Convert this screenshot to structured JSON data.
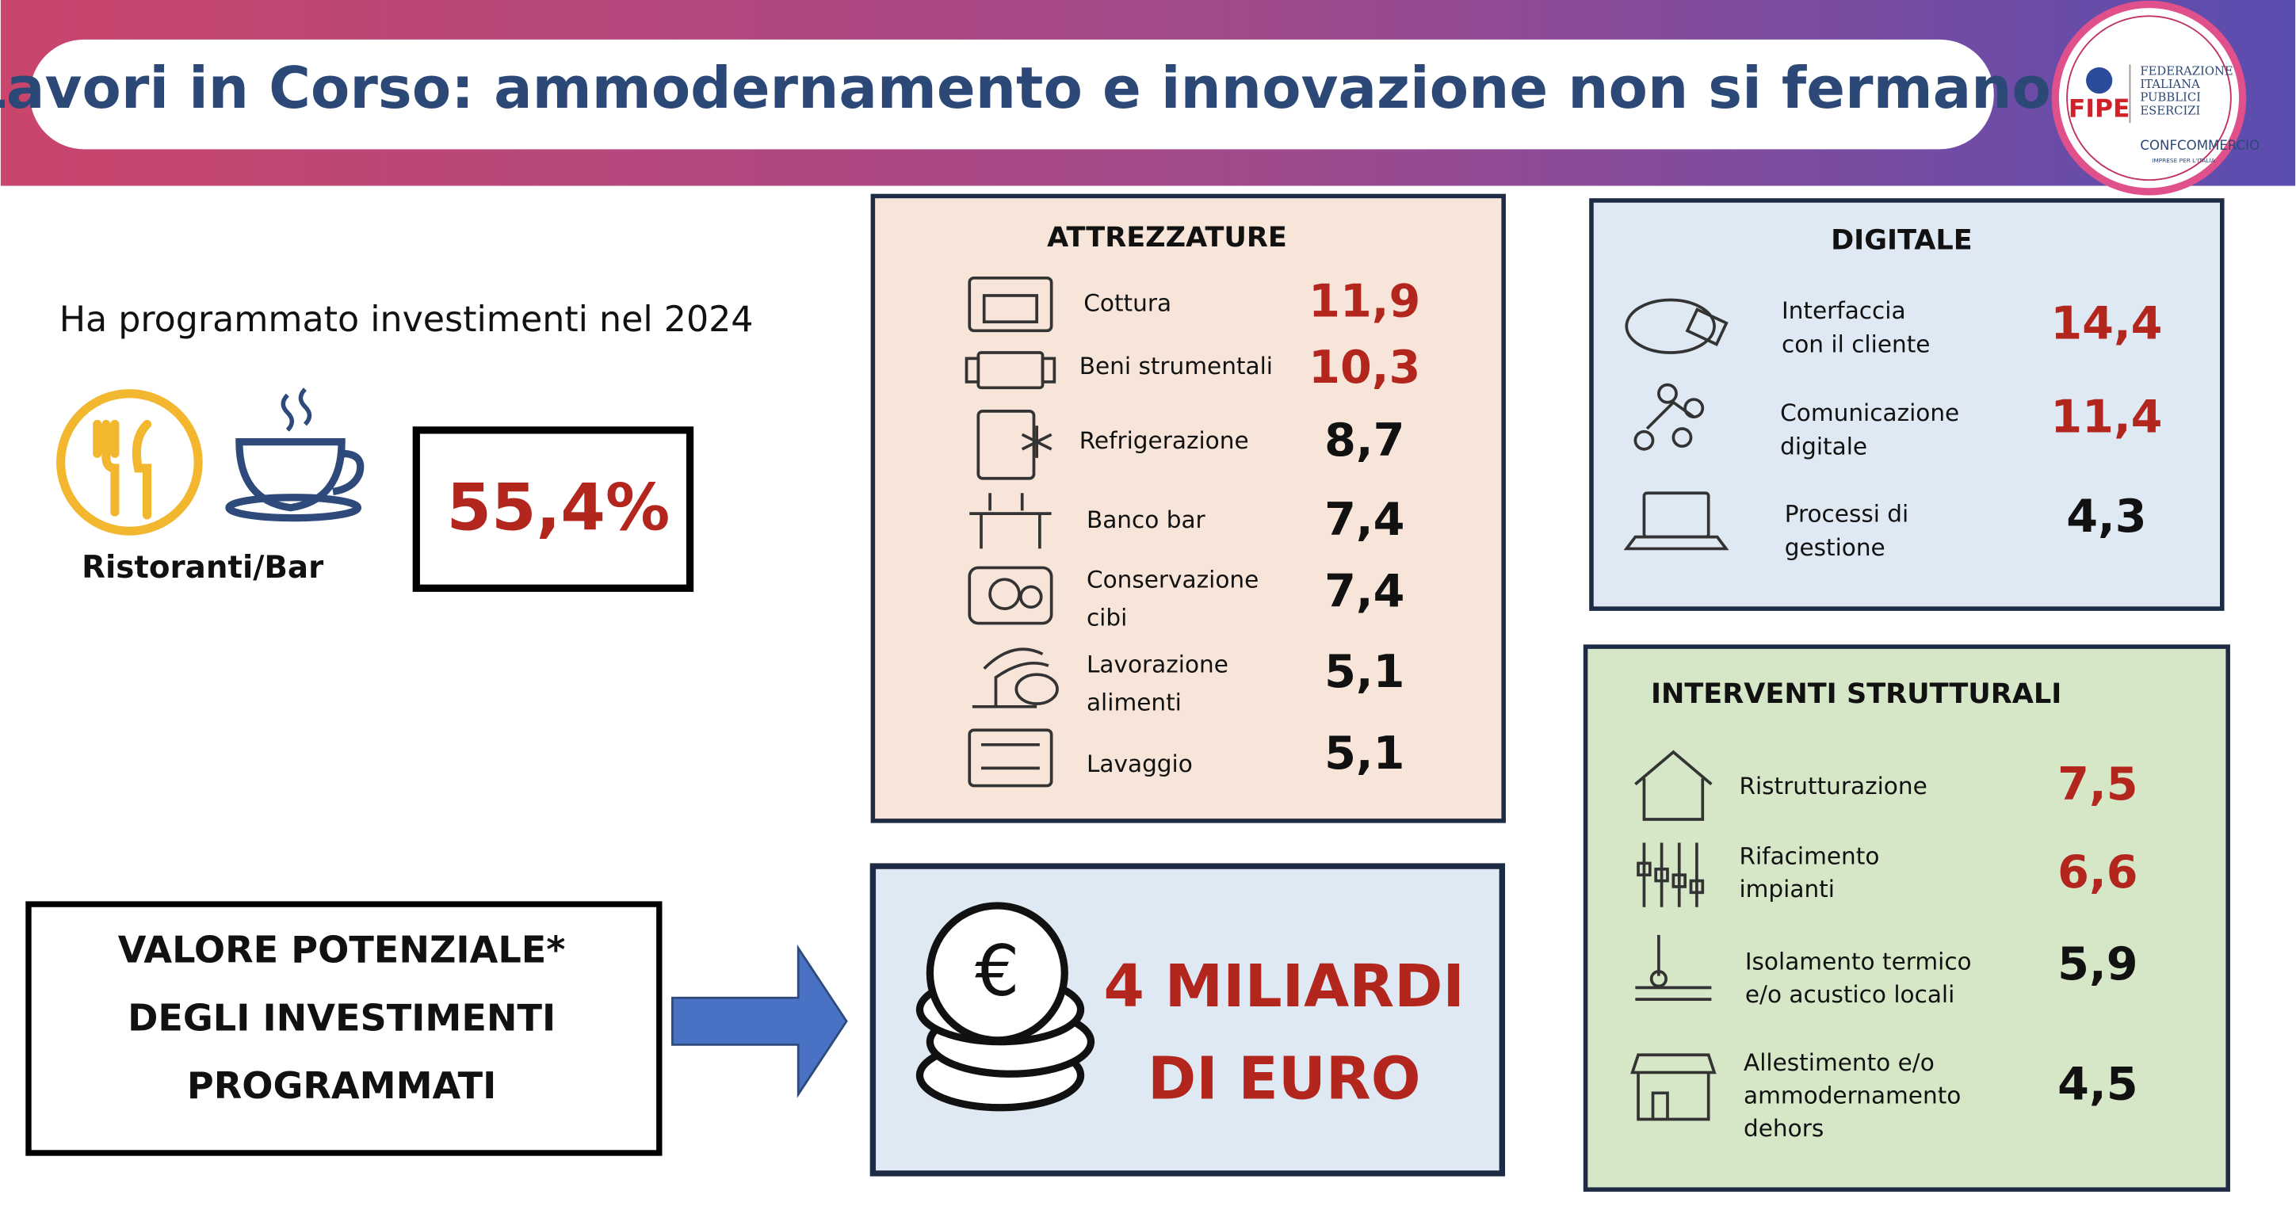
{
  "header": {
    "title": "Lavori in Corso: ammodernamento e innovazione non si fermano"
  },
  "logo": {
    "brand": "FIPE",
    "lines": [
      "FEDERAZIONE",
      "ITALIANA",
      "PUBBLICI",
      "ESERCIZI"
    ],
    "confcommercio": "CONFCOMMERCIO",
    "tagline": "IMPRESE PER L'ITALIA"
  },
  "intro": {
    "text": "Ha programmato investimenti nel 2024",
    "segment": "Ristoranti/Bar",
    "value": "55,4%"
  },
  "attrezzature": {
    "title": "ATTREZZATURE",
    "items": [
      {
        "label": [
          "Cottura"
        ],
        "value": "11,9",
        "highlight": true
      },
      {
        "label": [
          "Beni strumentali"
        ],
        "value": "10,3",
        "highlight": true
      },
      {
        "label": [
          "Refrigerazione"
        ],
        "value": "8,7",
        "highlight": false
      },
      {
        "label": [
          "Banco bar"
        ],
        "value": "7,4",
        "highlight": false
      },
      {
        "label": [
          "Conservazione",
          "cibi"
        ],
        "value": "7,4",
        "highlight": false
      },
      {
        "label": [
          "Lavorazione",
          "alimenti"
        ],
        "value": "5,1",
        "highlight": false
      },
      {
        "label": [
          "Lavaggio"
        ],
        "value": "5,1",
        "highlight": false
      }
    ]
  },
  "digitale": {
    "title": "DIGITALE",
    "items": [
      {
        "label": [
          "Interfaccia",
          "con il cliente"
        ],
        "value": "14,4",
        "highlight": true
      },
      {
        "label": [
          "Comunicazione",
          "digitale"
        ],
        "value": "11,4",
        "highlight": true
      },
      {
        "label": [
          "Processi di",
          "gestione"
        ],
        "value": "4,3",
        "highlight": false
      }
    ]
  },
  "interventi": {
    "title": "INTERVENTI STRUTTURALI",
    "items": [
      {
        "label": [
          "Ristrutturazione"
        ],
        "value": "7,5",
        "highlight": true
      },
      {
        "label": [
          "Rifacimento",
          "impianti"
        ],
        "value": "6,6",
        "highlight": true
      },
      {
        "label": [
          "Isolamento termico",
          "e/o acustico locali"
        ],
        "value": "5,9",
        "highlight": false
      },
      {
        "label": [
          "Allestimento e/o",
          "ammodernamento",
          "dehors"
        ],
        "value": "4,5",
        "highlight": false
      }
    ]
  },
  "valore": {
    "lines": [
      "VALORE POTENZIALE*",
      "DEGLI INVESTIMENTI",
      "PROGRAMMATI"
    ],
    "amount": [
      "4 MILIARDI",
      "DI EURO"
    ]
  }
}
